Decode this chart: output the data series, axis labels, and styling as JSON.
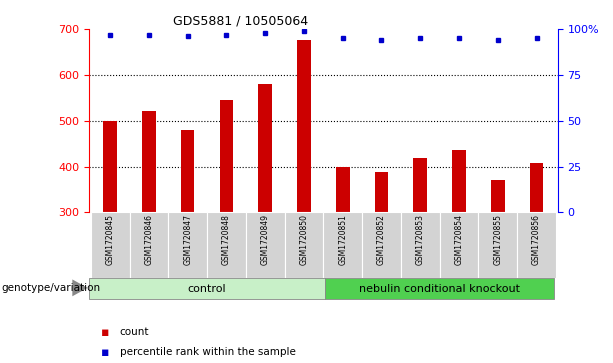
{
  "title": "GDS5881 / 10505064",
  "samples": [
    "GSM1720845",
    "GSM1720846",
    "GSM1720847",
    "GSM1720848",
    "GSM1720849",
    "GSM1720850",
    "GSM1720851",
    "GSM1720852",
    "GSM1720853",
    "GSM1720854",
    "GSM1720855",
    "GSM1720856"
  ],
  "counts": [
    500,
    522,
    480,
    546,
    580,
    675,
    400,
    388,
    418,
    435,
    370,
    408
  ],
  "percentiles": [
    97,
    97,
    96,
    97,
    98,
    99,
    95,
    94,
    95,
    95,
    94,
    95
  ],
  "ylim_left": [
    300,
    700
  ],
  "ylim_right": [
    0,
    100
  ],
  "yticks_left": [
    300,
    400,
    500,
    600,
    700
  ],
  "yticks_right": [
    0,
    25,
    50,
    75,
    100
  ],
  "yticklabels_right": [
    "0",
    "25",
    "50",
    "75",
    "100%"
  ],
  "grid_values": [
    400,
    500,
    600
  ],
  "bar_color": "#cc0000",
  "dot_color": "#0000cc",
  "bar_width": 0.35,
  "control_label": "control",
  "knockout_label": "nebulin conditional knockout",
  "group_label": "genotype/variation",
  "legend_count": "count",
  "legend_percentile": "percentile rank within the sample",
  "control_bg": "#c8f0c8",
  "knockout_bg": "#50d050",
  "sample_bg": "#d3d3d3"
}
